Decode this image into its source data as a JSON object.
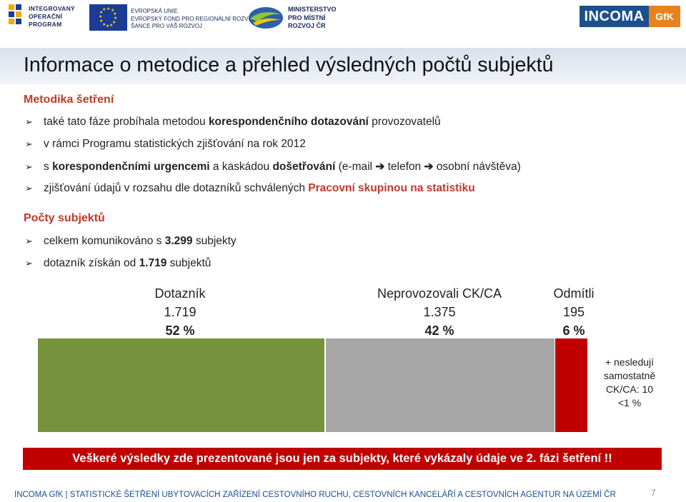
{
  "header": {
    "iop_text": [
      "INTEGROVANÝ",
      "OPERAČNÍ",
      "PROGRAM"
    ],
    "eu_text": [
      "EVROPSKÁ UNIE",
      "EVROPSKÝ FOND PRO REGIONÁLNÍ ROZVOJ",
      "ŠANCE PRO VÁŠ ROZVOJ"
    ],
    "mmr_text": [
      "MINISTERSTVO",
      "PRO MÍSTNÍ",
      "ROZVOJ ČR"
    ],
    "incoma": "INCOMA",
    "gfk": "GfK"
  },
  "title": "Informace o metodice a přehled výsledných počtů subjektů",
  "section1": {
    "heading": "Metodika šetření",
    "b1": [
      "také tato fáze probíhala metodou ",
      "korespondenčního dotazování",
      " provozovatelů"
    ],
    "b2": "v rámci Programu statistických zjišťování na rok 2012",
    "b3": [
      "s ",
      "korespondenčními urgencemi",
      " a kaskádou ",
      "došetřování",
      " (e-mail ",
      "➔",
      " telefon ",
      "➔",
      " osobní návštěva)"
    ],
    "b4": [
      "zjišťování údajů v rozsahu dle dotazníků schválených ",
      "Pracovní skupinou na statistiku"
    ]
  },
  "section2": {
    "heading": "Počty subjektů",
    "b1": [
      "celkem komunikováno s ",
      "3.299",
      " subjekty"
    ],
    "b2": [
      "dotazník získán od ",
      "1.719",
      " subjektů"
    ]
  },
  "chart_data": {
    "type": "bar",
    "categories": [
      "Dotazník",
      "Neprovozovali CK/CA",
      "Odmítli"
    ],
    "counts": [
      "1.719",
      "1.375",
      "195"
    ],
    "percents": [
      "52 %",
      "42 %",
      "6 %"
    ],
    "values": [
      52,
      42,
      6
    ],
    "colors": [
      "#76923c",
      "#a6a6a6",
      "#c00000"
    ],
    "note": [
      "+ nesledují",
      "samostatně",
      "CK/CA: 10",
      "<1 %"
    ]
  },
  "banner": "Veškeré výsledky zde prezentované jsou jen za subjekty, které vykázaly údaje ve 2. fázi šetření !!",
  "footer": "INCOMA GfK | STATISTICKÉ ŠETŘENÍ UBYTOVACÍCH ZAŘÍZENÍ CESTOVNÍHO RUCHU, CESTOVNÍCH KANCELÁŘÍ A CESTOVNÍCH AGENTUR NA ÚZEMÍ ČR",
  "page_number": "7"
}
